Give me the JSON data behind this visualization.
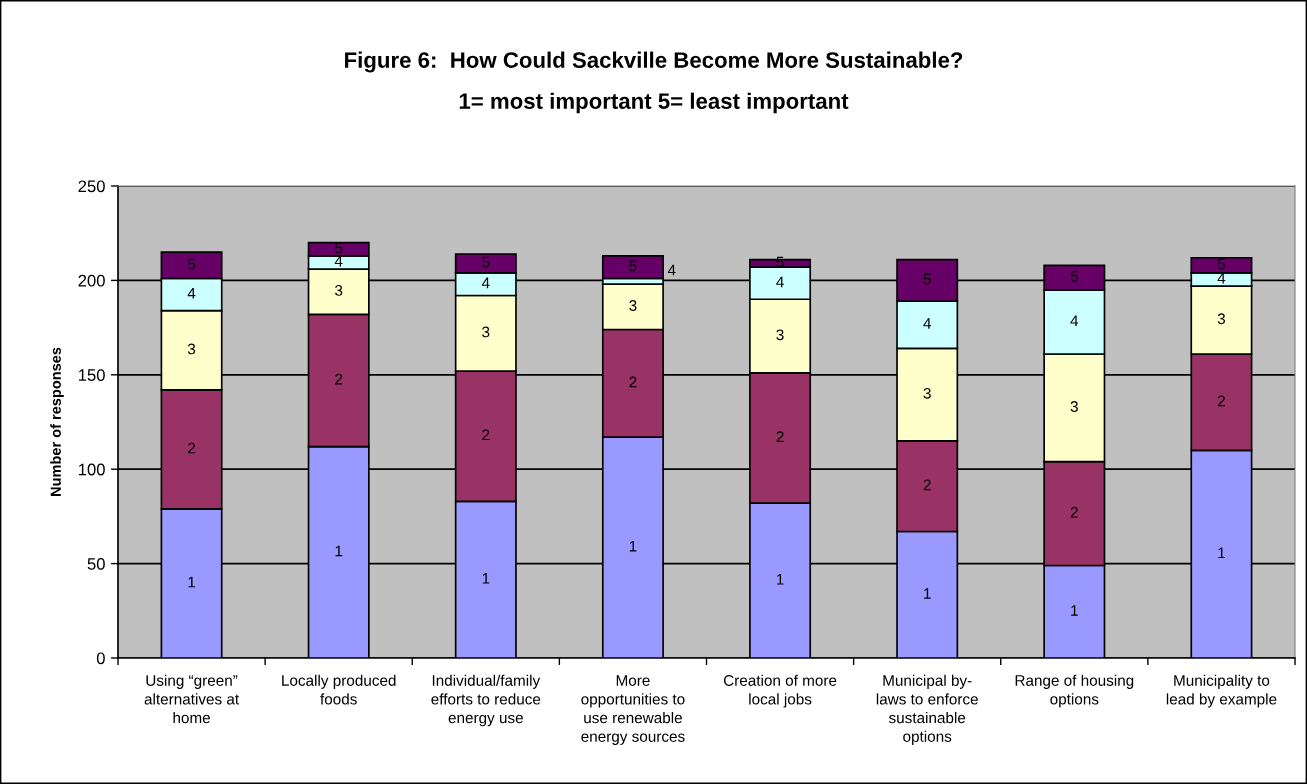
{
  "chart_data": {
    "type": "bar",
    "stacked": true,
    "title": "Figure 6:  How Could Sackville Become More Sustainable?",
    "subtitle": "1= most important 5= least important",
    "ylabel": "Number of responses",
    "categories": [
      "Using “green”\nalternatives at\nhome",
      "Locally produced\nfoods",
      "Individual/family\nefforts to reduce\nenergy use",
      "More\nopportunities to\nuse renewable\nenergy sources",
      "Creation of more\nlocal jobs",
      "Municipal by-\nlaws to enforce\nsustainable\noptions",
      "Range of housing\noptions",
      "Municipality to\nlead by example"
    ],
    "series": [
      {
        "name": "1",
        "color": "#9999ff",
        "values": [
          79,
          112,
          83,
          117,
          82,
          67,
          49,
          110
        ]
      },
      {
        "name": "2",
        "color": "#993366",
        "values": [
          63,
          70,
          69,
          57,
          69,
          48,
          55,
          51
        ]
      },
      {
        "name": "3",
        "color": "#ffffcc",
        "values": [
          42,
          24,
          40,
          24,
          39,
          49,
          57,
          36
        ]
      },
      {
        "name": "4",
        "color": "#ccffff",
        "values": [
          17,
          7,
          12,
          3,
          17,
          25,
          34,
          7
        ]
      },
      {
        "name": "5",
        "color": "#660066",
        "values": [
          14,
          7,
          10,
          12,
          4,
          22,
          13,
          8
        ]
      }
    ],
    "ylim": [
      0,
      250
    ],
    "yticks": [
      0,
      50,
      100,
      150,
      200,
      250
    ],
    "grid": "y"
  }
}
